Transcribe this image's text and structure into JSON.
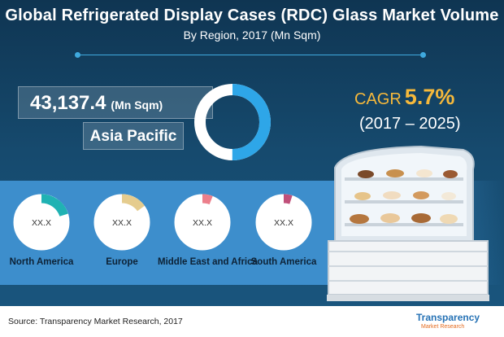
{
  "header": {
    "title": "Global Refrigerated Display Cases (RDC) Glass Market Volume",
    "subtitle": "By Region, 2017 (Mn Sqm)"
  },
  "highlight": {
    "value": "43,137.4",
    "unit": "(Mn Sqm)",
    "region": "Asia Pacific"
  },
  "cagr": {
    "label": "CAGR",
    "value": "5.7%",
    "period": "(2017 – 2025)"
  },
  "regions": [
    {
      "name": "North America",
      "value_label": "XX.X",
      "color": "#20b2b3"
    },
    {
      "name": "Europe",
      "value_label": "XX.X",
      "color": "#e5cc8e"
    },
    {
      "name": "Middle East and Africa",
      "value_label": "XX.X",
      "color": "#ec7f8b"
    },
    {
      "name": "South America",
      "value_label": "XX.X",
      "color": "#c0507a"
    }
  ],
  "footer": {
    "source": "Source: Transparency Market Research, 2017",
    "logo_main": "Transparency",
    "logo_sub": "Market Research"
  },
  "colors": {
    "background": "#164a6e",
    "accent": "#3fa9de",
    "asia_pacific": "#2ea6e8",
    "cagr": "#f6b93b",
    "band": "#3d8ecc"
  },
  "icons": [
    "display-case-illustration"
  ],
  "chart_data": {
    "type": "pie",
    "title": "Global Refrigerated Display Cases (RDC) Glass Market Volume",
    "subtitle": "By Region, 2017 (Mn Sqm)",
    "categories": [
      "Asia Pacific",
      "North America",
      "Europe",
      "Middle East and Africa",
      "South America"
    ],
    "values": [
      43137.4,
      null,
      null,
      null,
      null
    ],
    "value_labels": [
      "43,137.4",
      "XX.X",
      "XX.X",
      "XX.X",
      "XX.X"
    ],
    "ring_fill_fractions": [
      0.5,
      0.2,
      0.15,
      0.06,
      0.05
    ]
  }
}
